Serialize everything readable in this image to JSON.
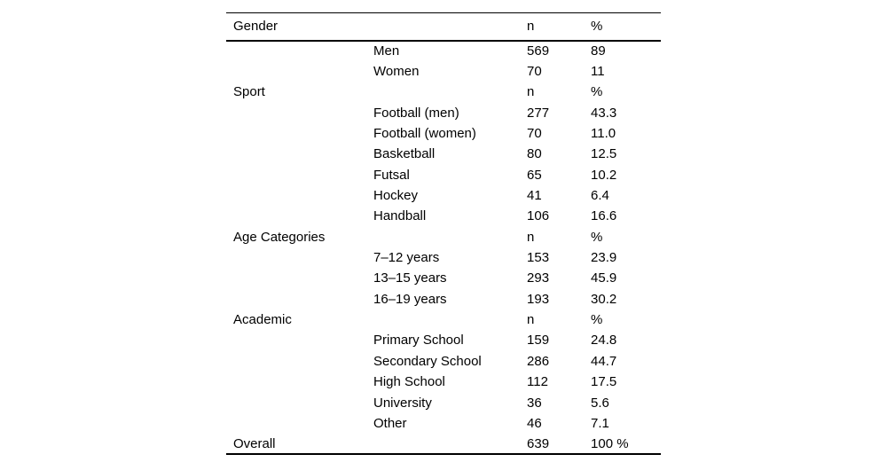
{
  "accent_colors": {
    "text": "#000000",
    "background": "#ffffff",
    "rule": "#000000"
  },
  "table": {
    "header": {
      "category": "Gender",
      "n": "n",
      "pct": "%"
    },
    "rows": [
      {
        "group": "",
        "label": "Men",
        "n": "569",
        "pct": "89"
      },
      {
        "group": "",
        "label": "Women",
        "n": "70",
        "pct": "11"
      },
      {
        "group": "Sport",
        "label": "",
        "n": "n",
        "pct": "%"
      },
      {
        "group": "",
        "label": "Football (men)",
        "n": "277",
        "pct": "43.3"
      },
      {
        "group": "",
        "label": "Football (women)",
        "n": "70",
        "pct": "11.0"
      },
      {
        "group": "",
        "label": "Basketball",
        "n": "80",
        "pct": "12.5"
      },
      {
        "group": "",
        "label": "Futsal",
        "n": "65",
        "pct": "10.2"
      },
      {
        "group": "",
        "label": "Hockey",
        "n": "41",
        "pct": "6.4"
      },
      {
        "group": "",
        "label": "Handball",
        "n": "106",
        "pct": "16.6"
      },
      {
        "group": "Age Categories",
        "label": "",
        "n": "n",
        "pct": "%"
      },
      {
        "group": "",
        "label": "7–12 years",
        "n": "153",
        "pct": "23.9"
      },
      {
        "group": "",
        "label": "13–15 years",
        "n": "293",
        "pct": "45.9"
      },
      {
        "group": "",
        "label": "16–19 years",
        "n": "193",
        "pct": "30.2"
      },
      {
        "group": "Academic",
        "label": "",
        "n": "n",
        "pct": "%"
      },
      {
        "group": "",
        "label": "Primary School",
        "n": "159",
        "pct": "24.8"
      },
      {
        "group": "",
        "label": "Secondary School",
        "n": "286",
        "pct": "44.7"
      },
      {
        "group": "",
        "label": "High School",
        "n": "112",
        "pct": "17.5"
      },
      {
        "group": "",
        "label": "University",
        "n": "36",
        "pct": "5.6"
      },
      {
        "group": "",
        "label": "Other",
        "n": "46",
        "pct": "7.1"
      },
      {
        "group": "Overall",
        "label": "",
        "n": "639",
        "pct": "100 %"
      }
    ]
  }
}
